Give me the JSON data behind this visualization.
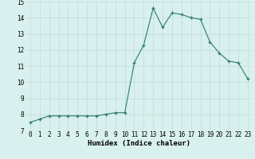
{
  "x": [
    0,
    1,
    2,
    3,
    4,
    5,
    6,
    7,
    8,
    9,
    10,
    11,
    12,
    13,
    14,
    15,
    16,
    17,
    18,
    19,
    20,
    21,
    22,
    23
  ],
  "y": [
    7.5,
    7.7,
    7.9,
    7.9,
    7.9,
    7.9,
    7.9,
    7.9,
    8.0,
    8.1,
    8.1,
    11.2,
    12.3,
    14.6,
    13.4,
    14.3,
    14.2,
    14.0,
    13.9,
    12.5,
    11.8,
    11.3,
    11.2,
    10.2
  ],
  "xlabel": "Humidex (Indice chaleur)",
  "ylim": [
    7,
    15
  ],
  "xlim": [
    -0.5,
    23.5
  ],
  "yticks": [
    7,
    8,
    9,
    10,
    11,
    12,
    13,
    14,
    15
  ],
  "xticks": [
    0,
    1,
    2,
    3,
    4,
    5,
    6,
    7,
    8,
    9,
    10,
    11,
    12,
    13,
    14,
    15,
    16,
    17,
    18,
    19,
    20,
    21,
    22,
    23
  ],
  "line_color": "#2d7a6e",
  "bg_color": "#d8f0ee",
  "grid_color": "#c8dede",
  "tick_label_fontsize": 5.5,
  "xlabel_fontsize": 6.5
}
